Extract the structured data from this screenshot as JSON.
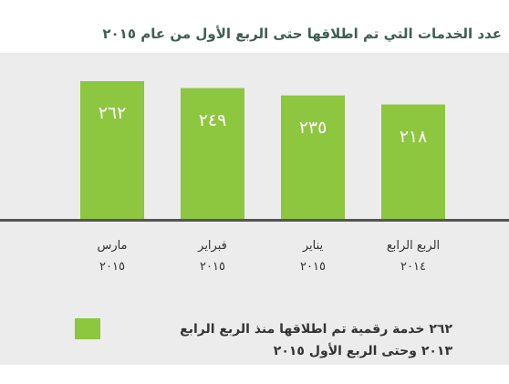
{
  "chart_data": {
    "type": "bar",
    "title": "عدد الخدمات التي تم اطلاقها حتى الربع الأول من عام ٢٠١٥",
    "categories": [
      "مارس\n٢٠١٥",
      "فبراير\n٢٠١٥",
      "يناير\n٢٠١٥",
      "الربع الرابع\n٢٠١٤"
    ],
    "values": [
      262,
      249,
      235,
      218
    ],
    "value_labels": [
      "٢٦٢",
      "٢٤٩",
      "٢٣٥",
      "٢١٨"
    ],
    "color": "#8dc63f",
    "legend": {
      "text": "٢٦٢ خدمة رقمية تم اطلاقها منذ الربع الرابع\n٢٠١٣ وحتى الربع الأول ٢٠١٥",
      "color": "#8dc63f"
    }
  }
}
